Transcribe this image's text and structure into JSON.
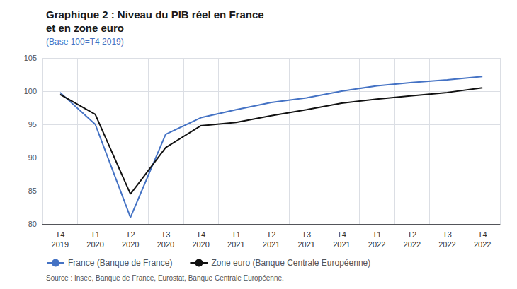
{
  "chart_data": {
    "type": "line",
    "title": "Graphique 2 : Niveau du PIB réel en France\net en zone euro",
    "subtitle": "(Base 100=T4 2019)",
    "categories": [
      "T4\n2019",
      "T1\n2020",
      "T2\n2020",
      "T3\n2020",
      "T4\n2020",
      "T1\n2021",
      "T2\n2021",
      "T3\n2021",
      "T4\n2021",
      "T1\n2022",
      "T2\n2022",
      "T3\n2022",
      "T4\n2022"
    ],
    "series": [
      {
        "name": "France (Banque de France)",
        "color": "#4472C4",
        "values": [
          99.8,
          95.0,
          81.0,
          93.5,
          96.0,
          97.2,
          98.3,
          99.0,
          100.0,
          100.8,
          101.3,
          101.7,
          102.2
        ]
      },
      {
        "name": "Zone euro (Banque Centrale Européenne)",
        "color": "#111111",
        "values": [
          99.5,
          96.5,
          84.5,
          91.5,
          94.8,
          95.3,
          96.3,
          97.2,
          98.2,
          98.8,
          99.3,
          99.8,
          100.5
        ]
      }
    ],
    "ylim": [
      80,
      105
    ],
    "yticks": [
      80,
      85,
      90,
      95,
      100,
      105
    ],
    "grid": true,
    "legend": "bottom",
    "annotations": [
      "Source : Insee, Banque de France, Eurostat, Banque Centrale Européenne."
    ]
  }
}
